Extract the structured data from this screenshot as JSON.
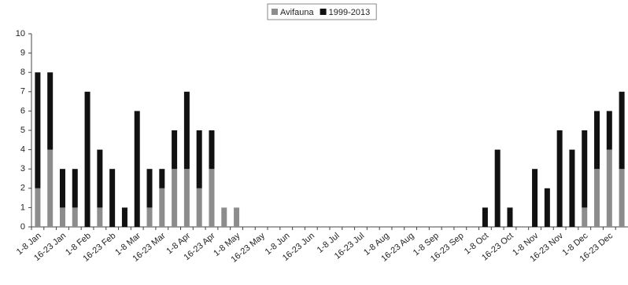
{
  "chart_data": {
    "type": "stacked-bar",
    "categories": [
      "1-8 Jan",
      null,
      "16-23 Jan",
      null,
      "1-8 Feb",
      null,
      "16-23 Feb",
      null,
      "1-8 Mar",
      null,
      "16-23 Mar",
      null,
      "1-8 Apr",
      null,
      "16-23 Apr",
      null,
      "1-8 May",
      null,
      "16-23 May",
      null,
      "1-8 Jun",
      null,
      "16-23 Jun",
      null,
      "1-8 Jul",
      null,
      "16-23 Jul",
      null,
      "1-8 Aug",
      null,
      "16-23 Aug",
      null,
      "1-8 Sep",
      null,
      "16-23 Sep",
      null,
      "1-8 Oct",
      null,
      "16-23 Oct",
      null,
      "1-8 Nov",
      null,
      "16-23 Nov",
      null,
      "1-8 Dec",
      null,
      "16-23 Dec",
      null
    ],
    "series": [
      {
        "name": "Avifauna",
        "color": "#8c8c8c",
        "values": [
          2,
          4,
          1,
          1,
          0,
          1,
          0,
          0,
          0,
          1,
          2,
          3,
          3,
          2,
          3,
          1,
          1,
          0,
          0,
          0,
          0,
          0,
          0,
          0,
          0,
          0,
          0,
          0,
          0,
          0,
          0,
          0,
          0,
          0,
          0,
          0,
          0,
          0,
          0,
          0,
          0,
          0,
          0,
          0,
          1,
          3,
          4,
          3
        ]
      },
      {
        "name": "1999-2013",
        "color": "#111111",
        "values": [
          6,
          4,
          2,
          2,
          7,
          3,
          3,
          1,
          6,
          2,
          1,
          2,
          4,
          3,
          2,
          0,
          0,
          0,
          0,
          0,
          0,
          0,
          0,
          0,
          0,
          0,
          0,
          0,
          0,
          0,
          0,
          0,
          0,
          0,
          0,
          0,
          1,
          4,
          1,
          0,
          3,
          2,
          5,
          4,
          4,
          3,
          2,
          4
        ]
      }
    ],
    "ylim": [
      0,
      10
    ],
    "yticks": [
      0,
      1,
      2,
      3,
      4,
      5,
      6,
      7,
      8,
      9,
      10
    ],
    "legend": "top"
  }
}
